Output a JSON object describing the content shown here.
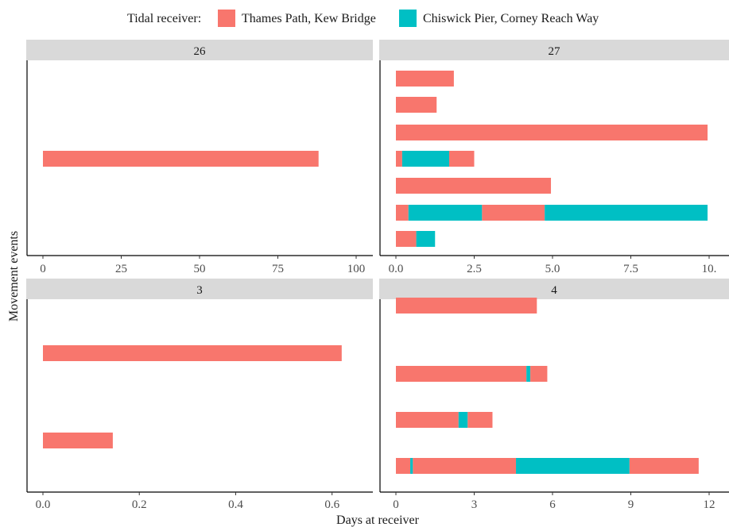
{
  "legend": {
    "title": "Tidal receiver:",
    "items": [
      {
        "label": "Thames Path, Kew Bridge",
        "color": "#F8766D"
      },
      {
        "label": "Chiswick Pier, Corney Reach Way",
        "color": "#00BFC4"
      }
    ]
  },
  "axes": {
    "xlabel": "Days at receiver",
    "ylabel": "Movement events"
  },
  "chart_data": [
    {
      "type": "bar",
      "orientation": "horizontal-stacked",
      "panel": "26",
      "xlim": [
        0,
        100
      ],
      "xticks": [
        0,
        25,
        50,
        75,
        100
      ],
      "xtick_labels": [
        "0",
        "25",
        "50",
        "75",
        "100"
      ],
      "rows": [
        {
          "segments": [
            {
              "receiver": "Thames Path, Kew Bridge",
              "days": 88
            }
          ]
        }
      ]
    },
    {
      "type": "bar",
      "orientation": "horizontal-stacked",
      "panel": "27",
      "xlim": [
        0,
        10
      ],
      "xticks": [
        0,
        2.5,
        5,
        7.5,
        10
      ],
      "xtick_labels": [
        "0.0",
        "2.5",
        "5.0",
        "7.5",
        "10."
      ],
      "rows": [
        {
          "segments": [
            {
              "receiver": "Thames Path, Kew Bridge",
              "days": 1.85
            }
          ]
        },
        {
          "segments": [
            {
              "receiver": "Thames Path, Kew Bridge",
              "days": 1.3
            }
          ]
        },
        {
          "segments": [
            {
              "receiver": "Thames Path, Kew Bridge",
              "days": 9.95
            }
          ]
        },
        {
          "segments": [
            {
              "receiver": "Thames Path, Kew Bridge",
              "days": 0.2
            },
            {
              "receiver": "Chiswick Pier, Corney Reach Way",
              "days": 1.5
            },
            {
              "receiver": "Thames Path, Kew Bridge",
              "days": 0.8
            }
          ]
        },
        {
          "segments": [
            {
              "receiver": "Thames Path, Kew Bridge",
              "days": 4.95
            }
          ]
        },
        {
          "segments": [
            {
              "receiver": "Thames Path, Kew Bridge",
              "days": 0.4
            },
            {
              "receiver": "Chiswick Pier, Corney Reach Way",
              "days": 2.35
            },
            {
              "receiver": "Thames Path, Kew Bridge",
              "days": 2.0
            },
            {
              "receiver": "Chiswick Pier, Corney Reach Way",
              "days": 5.2
            }
          ]
        },
        {
          "segments": [
            {
              "receiver": "Thames Path, Kew Bridge",
              "days": 0.65
            },
            {
              "receiver": "Chiswick Pier, Corney Reach Way",
              "days": 0.6
            }
          ]
        }
      ]
    },
    {
      "type": "bar",
      "orientation": "horizontal-stacked",
      "panel": "3",
      "xlim": [
        0,
        0.65
      ],
      "xticks": [
        0,
        0.2,
        0.4,
        0.6
      ],
      "xtick_labels": [
        "0.0",
        "0.2",
        "0.4",
        "0.6"
      ],
      "rows": [
        {
          "segments": [
            {
              "receiver": "Thames Path, Kew Bridge",
              "days": 0.62
            }
          ]
        },
        {
          "segments": [
            {
              "receiver": "Thames Path, Kew Bridge",
              "days": 0.145
            }
          ]
        }
      ]
    },
    {
      "type": "bar",
      "orientation": "horizontal-stacked",
      "panel": "4",
      "xlim": [
        0,
        12
      ],
      "xticks": [
        0,
        3,
        6,
        9,
        12
      ],
      "xtick_labels": [
        "0",
        "3",
        "6",
        "9",
        "12"
      ],
      "rows": [
        {
          "segments": [
            {
              "receiver": "Thames Path, Kew Bridge",
              "days": 5.4
            }
          ]
        },
        {
          "segments": [
            {
              "receiver": "Thames Path, Kew Bridge",
              "days": 5.0
            },
            {
              "receiver": "Chiswick Pier, Corney Reach Way",
              "days": 0.15
            },
            {
              "receiver": "Thames Path, Kew Bridge",
              "days": 0.65
            }
          ]
        },
        {
          "segments": [
            {
              "receiver": "Thames Path, Kew Bridge",
              "days": 2.4
            },
            {
              "receiver": "Chiswick Pier, Corney Reach Way",
              "days": 0.35
            },
            {
              "receiver": "Thames Path, Kew Bridge",
              "days": 0.95
            }
          ]
        },
        {
          "segments": [
            {
              "receiver": "Thames Path, Kew Bridge",
              "days": 0.55
            },
            {
              "receiver": "Chiswick Pier, Corney Reach Way",
              "days": 0.1
            },
            {
              "receiver": "Thames Path, Kew Bridge",
              "days": 3.95
            },
            {
              "receiver": "Chiswick Pier, Corney Reach Way",
              "days": 4.35
            },
            {
              "receiver": "Thames Path, Kew Bridge",
              "days": 2.65
            }
          ]
        }
      ]
    }
  ]
}
